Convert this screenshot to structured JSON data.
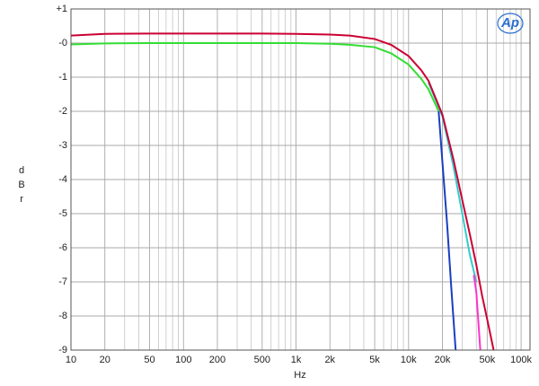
{
  "chart_data": {
    "type": "line",
    "x_label": "Hz",
    "y_label": "dBr",
    "logo": "Ap",
    "x_log": true,
    "grid": true,
    "xlim": [
      10,
      120000
    ],
    "ylim": [
      -9,
      1
    ],
    "xticks": [
      10,
      20,
      50,
      100,
      200,
      500,
      {
        "value": 1000,
        "label": "1k"
      },
      {
        "value": 2000,
        "label": "2k"
      },
      {
        "value": 5000,
        "label": "5k"
      },
      {
        "value": 10000,
        "label": "10k"
      },
      {
        "value": 20000,
        "label": "20k"
      },
      {
        "value": 50000,
        "label": "50k"
      },
      {
        "value": 100000,
        "label": "100k"
      }
    ],
    "x_minor_ticks": [
      30,
      40,
      60,
      70,
      80,
      90,
      300,
      400,
      600,
      700,
      800,
      900,
      3000,
      4000,
      6000,
      7000,
      8000,
      9000,
      30000,
      40000,
      60000,
      70000,
      80000,
      90000
    ],
    "yticks": [
      {
        "value": 1,
        "label": "+1"
      },
      {
        "value": 0,
        "label": "-0"
      },
      -1,
      -2,
      -3,
      -4,
      -5,
      -6,
      -7,
      -8,
      -9
    ],
    "series": [
      {
        "color": "#33cccc",
        "x": [
          15000,
          20000,
          25000,
          30000,
          35000,
          40000
        ],
        "values": [
          -1.15,
          -2.15,
          -3.6,
          -5.0,
          -6.2,
          -7.0
        ]
      },
      {
        "color": "#ff33cc",
        "x": [
          38000,
          40000,
          43400
        ],
        "values": [
          -6.8,
          -7.3,
          -9
        ]
      },
      {
        "color": "#33dd33",
        "x": [
          10,
          20,
          50,
          100,
          200,
          500,
          1000,
          2000,
          3000,
          5000,
          7000,
          10000,
          13000,
          15000,
          18500
        ],
        "values": [
          -0.04,
          -0.01,
          0,
          0,
          0,
          0,
          0,
          -0.02,
          -0.05,
          -0.12,
          -0.3,
          -0.63,
          -1.05,
          -1.35,
          -2.0
        ]
      },
      {
        "color": "#1a3fbf",
        "x": [
          18500,
          20000,
          22000,
          24000,
          26200
        ],
        "values": [
          -2.0,
          -3.5,
          -5.3,
          -7.2,
          -9
        ]
      },
      {
        "color": "#cc0033",
        "x": [
          10,
          20,
          50,
          100,
          200,
          500,
          1000,
          2000,
          3000,
          5000,
          7000,
          10000,
          13000,
          15000,
          20000,
          25000,
          30000,
          35000,
          40000,
          45000,
          50000,
          57000
        ],
        "values": [
          0.22,
          0.27,
          0.28,
          0.28,
          0.28,
          0.28,
          0.27,
          0.25,
          0.22,
          0.12,
          -0.05,
          -0.38,
          -0.8,
          -1.1,
          -2.1,
          -3.4,
          -4.6,
          -5.6,
          -6.5,
          -7.4,
          -8.1,
          -9
        ]
      }
    ]
  }
}
